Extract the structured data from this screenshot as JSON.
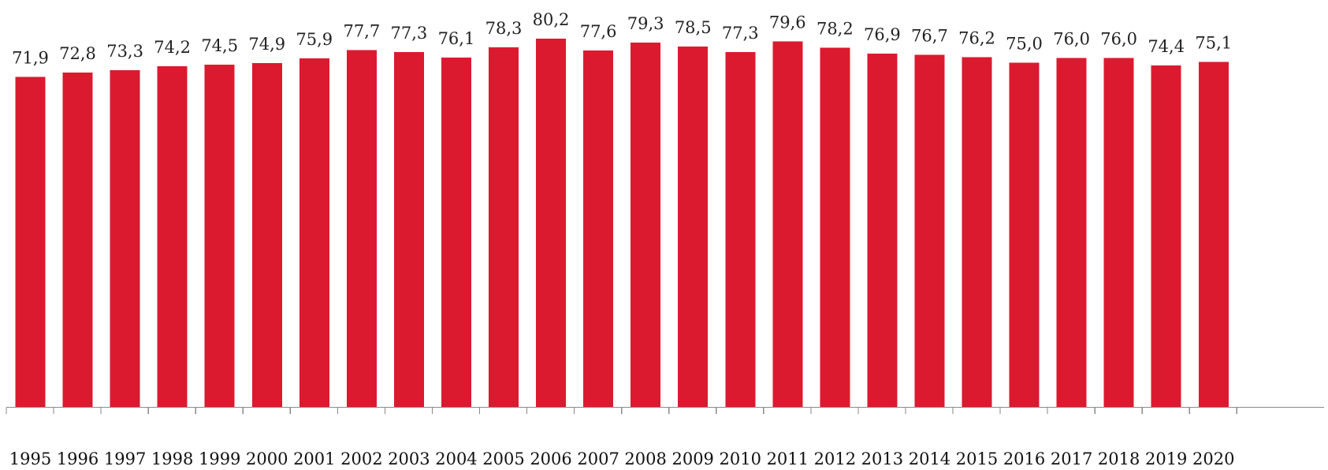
{
  "chart_data": {
    "type": "bar",
    "categories": [
      "1995",
      "1996",
      "1997",
      "1998",
      "1999",
      "2000",
      "2001",
      "2002",
      "2003",
      "2004",
      "2005",
      "2006",
      "2007",
      "2008",
      "2009",
      "2010",
      "2011",
      "2012",
      "2013",
      "2014",
      "2015",
      "2016",
      "2017",
      "2018",
      "2019",
      "2020"
    ],
    "values": [
      71.9,
      72.8,
      73.3,
      74.2,
      74.5,
      74.9,
      75.9,
      77.7,
      77.3,
      76.1,
      78.3,
      80.2,
      77.6,
      79.3,
      78.5,
      77.3,
      79.6,
      78.2,
      76.9,
      76.7,
      76.2,
      75.0,
      76.0,
      76.0,
      74.4,
      75.1
    ],
    "value_labels": [
      "71,9",
      "72,8",
      "73,3",
      "74,2",
      "74,5",
      "74,9",
      "75,9",
      "77,7",
      "77,3",
      "76,1",
      "78,3",
      "80,2",
      "77,6",
      "79,3",
      "78,5",
      "77,3",
      "79,6",
      "78,2",
      "76,9",
      "76,7",
      "76,2",
      "75,0",
      "76,0",
      "76,0",
      "74,4",
      "75,1"
    ],
    "title": "",
    "xlabel": "",
    "ylabel": "",
    "ylim": [
      0,
      80.2
    ],
    "grid": false,
    "colors": {
      "bar": "#DC1A2F",
      "axis": "#8A8A8A",
      "text": "#222222"
    }
  }
}
